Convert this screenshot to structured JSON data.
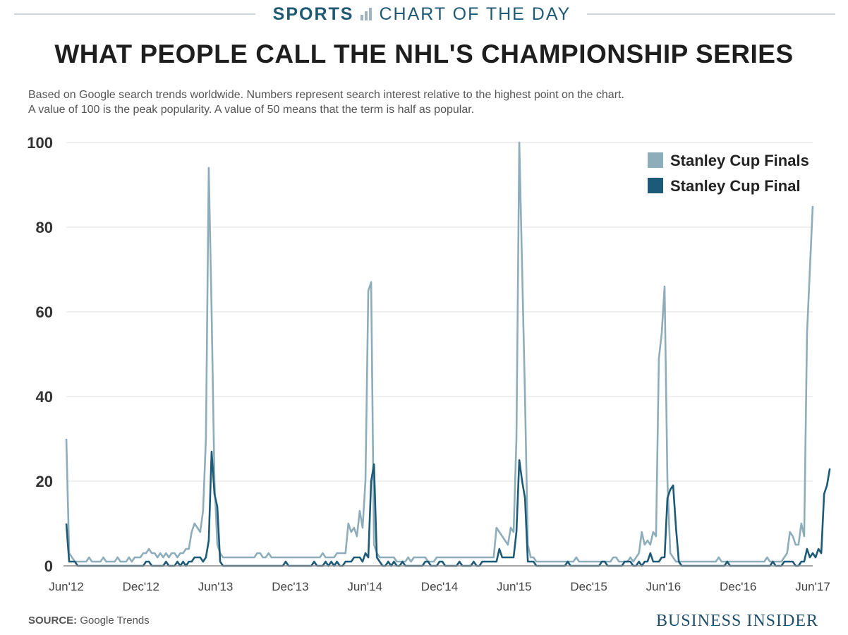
{
  "header": {
    "section": "SPORTS",
    "series_name": "CHART OF THE DAY",
    "title": "WHAT PEOPLE CALL THE NHL'S CHAMPIONSHIP SERIES",
    "subtitle_line1": "Based on Google search trends worldwide. Numbers represent search interest relative to the highest point on the chart.",
    "subtitle_line2": "A value of 100 is the peak popularity. A value of 50 means that the term is half as popular."
  },
  "footer": {
    "source_label": "SOURCE:",
    "source_text": "Google Trends",
    "brand": "BUSINESS INSIDER"
  },
  "colors": {
    "finals": "#8eadbb",
    "final": "#1c5a78",
    "grid": "#e2e2e2",
    "axis": "#888888",
    "brand": "#1f4e6b"
  },
  "chart_data": {
    "type": "line",
    "title": "WHAT PEOPLE CALL THE NHL'S CHAMPIONSHIP SERIES",
    "xlabel": "",
    "ylabel": "",
    "ylim": [
      0,
      100
    ],
    "yticks": [
      0,
      20,
      40,
      60,
      80,
      100
    ],
    "x_tick_labels": [
      "Jun'12",
      "Dec'12",
      "Jun'13",
      "Dec'13",
      "Jun'14",
      "Dec'14",
      "Jun'15",
      "Dec'15",
      "Jun'16",
      "Dec'16",
      "Jun'17"
    ],
    "x_range": [
      "2012-06-03",
      "2017-06-04"
    ],
    "x_unit": "weekly",
    "grid": true,
    "legend_position": "top-right",
    "series": [
      {
        "name": "Stanley Cup Finals",
        "color": "#8eadbb",
        "values": [
          30,
          3,
          2,
          1,
          1,
          1,
          1,
          1,
          2,
          1,
          1,
          1,
          1,
          2,
          1,
          1,
          1,
          1,
          2,
          1,
          1,
          1,
          2,
          1,
          2,
          2,
          2,
          3,
          3,
          4,
          3,
          3,
          2,
          3,
          2,
          3,
          2,
          3,
          3,
          2,
          3,
          3,
          4,
          4,
          8,
          10,
          9,
          8,
          13,
          30,
          94,
          60,
          20,
          5,
          3,
          2,
          2,
          2,
          2,
          2,
          2,
          2,
          2,
          2,
          2,
          2,
          2,
          3,
          3,
          2,
          2,
          3,
          2,
          2,
          2,
          2,
          2,
          2,
          2,
          2,
          2,
          2,
          2,
          2,
          2,
          2,
          2,
          2,
          2,
          2,
          3,
          2,
          2,
          2,
          2,
          3,
          3,
          3,
          3,
          10,
          8,
          9,
          7,
          13,
          9,
          20,
          65,
          67,
          5,
          3,
          2,
          2,
          2,
          2,
          2,
          2,
          1,
          1,
          1,
          1,
          2,
          1,
          2,
          2,
          2,
          2,
          2,
          1,
          1,
          1,
          2,
          2,
          2,
          2,
          2,
          2,
          2,
          2,
          2,
          2,
          2,
          2,
          2,
          2,
          2,
          2,
          2,
          2,
          2,
          2,
          2,
          9,
          8,
          7,
          6,
          5,
          9,
          8,
          30,
          100,
          70,
          40,
          5,
          2,
          2,
          1,
          1,
          1,
          1,
          1,
          1,
          1,
          1,
          1,
          1,
          1,
          1,
          1,
          1,
          2,
          1,
          1,
          1,
          1,
          1,
          1,
          1,
          1,
          1,
          1,
          1,
          1,
          2,
          2,
          1,
          1,
          1,
          1,
          2,
          1,
          2,
          3,
          8,
          5,
          6,
          5,
          8,
          7,
          49,
          55,
          66,
          20,
          3,
          2,
          1,
          1,
          1,
          1,
          1,
          1,
          1,
          1,
          1,
          1,
          1,
          1,
          1,
          1,
          1,
          2,
          1,
          1,
          1,
          1,
          1,
          1,
          1,
          1,
          1,
          1,
          1,
          1,
          1,
          1,
          1,
          1,
          2,
          1,
          1,
          1,
          1,
          1,
          2,
          3,
          8,
          7,
          5,
          5,
          10,
          7,
          55,
          70,
          85
        ]
      },
      {
        "name": "Stanley Cup Final",
        "color": "#1c5a78",
        "values": [
          10,
          1,
          1,
          1,
          0,
          0,
          0,
          0,
          0,
          0,
          0,
          0,
          0,
          0,
          0,
          0,
          0,
          0,
          0,
          0,
          0,
          0,
          0,
          0,
          0,
          0,
          0,
          0,
          1,
          1,
          0,
          0,
          0,
          0,
          0,
          1,
          0,
          0,
          0,
          1,
          0,
          1,
          0,
          1,
          1,
          2,
          2,
          2,
          1,
          2,
          6,
          27,
          17,
          14,
          1,
          0,
          0,
          0,
          0,
          0,
          0,
          0,
          0,
          0,
          0,
          0,
          0,
          0,
          0,
          0,
          0,
          0,
          0,
          0,
          0,
          0,
          0,
          1,
          0,
          0,
          0,
          0,
          0,
          0,
          0,
          0,
          0,
          1,
          0,
          0,
          0,
          1,
          0,
          1,
          0,
          1,
          0,
          0,
          1,
          1,
          1,
          2,
          2,
          2,
          1,
          3,
          2,
          20,
          24,
          2,
          1,
          0,
          0,
          1,
          0,
          1,
          0,
          0,
          1,
          0,
          0,
          0,
          0,
          0,
          0,
          0,
          1,
          1,
          0,
          0,
          0,
          1,
          1,
          0,
          0,
          0,
          0,
          0,
          1,
          0,
          0,
          0,
          0,
          1,
          0,
          0,
          1,
          1,
          1,
          1,
          1,
          1,
          4,
          2,
          2,
          2,
          2,
          2,
          8,
          25,
          20,
          16,
          1,
          1,
          1,
          0,
          0,
          0,
          0,
          0,
          0,
          0,
          0,
          0,
          0,
          0,
          1,
          0,
          0,
          0,
          0,
          0,
          0,
          0,
          0,
          0,
          0,
          0,
          1,
          1,
          0,
          0,
          0,
          0,
          0,
          0,
          1,
          1,
          1,
          0,
          0,
          1,
          0,
          1,
          1,
          3,
          1,
          1,
          1,
          2,
          2,
          16,
          18,
          19,
          9,
          1,
          0,
          0,
          0,
          0,
          0,
          0,
          0,
          0,
          0,
          0,
          0,
          0,
          0,
          0,
          0,
          0,
          1,
          0,
          0,
          0,
          0,
          0,
          0,
          0,
          0,
          0,
          0,
          0,
          0,
          0,
          0,
          0,
          1,
          0,
          0,
          0,
          1,
          1,
          1,
          1,
          0,
          0,
          1,
          1,
          4,
          2,
          3,
          2,
          4,
          3,
          17,
          19,
          23
        ]
      }
    ]
  }
}
